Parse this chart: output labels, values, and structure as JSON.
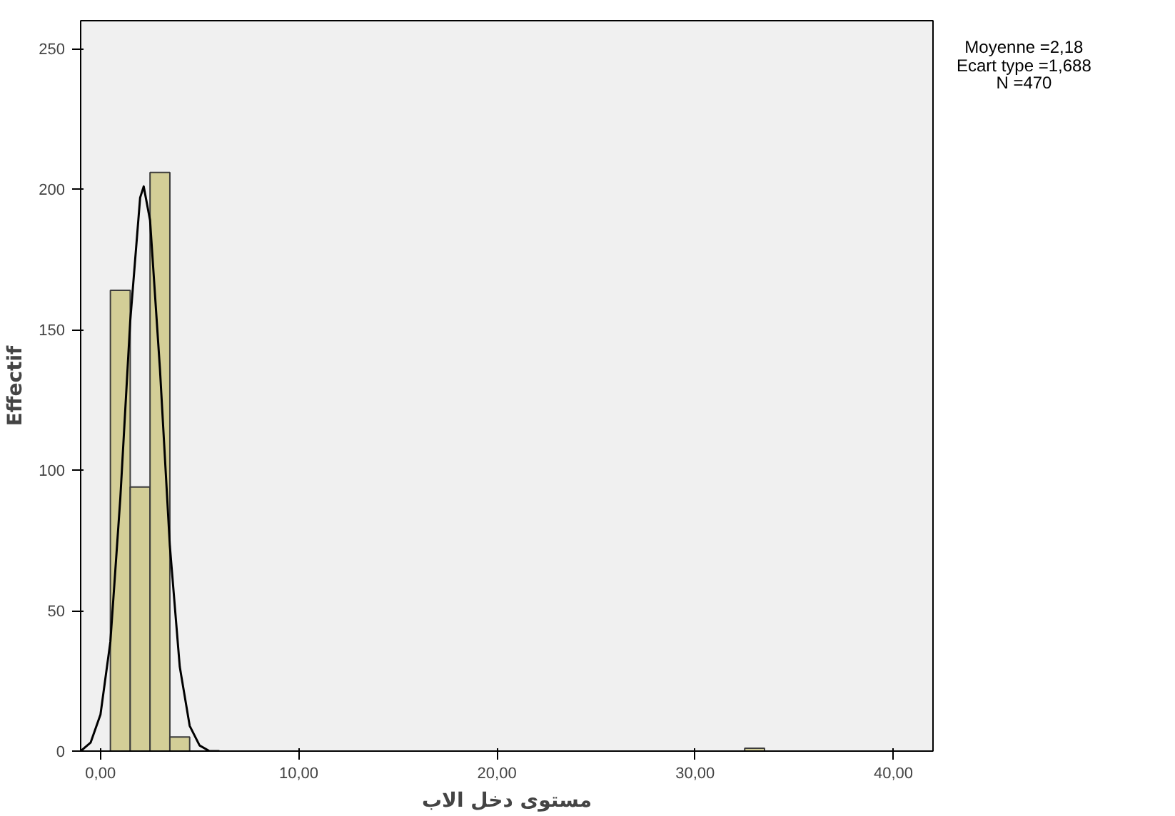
{
  "chart_data": {
    "type": "histogram",
    "xlabel": "مستوى دخل الاب",
    "ylabel": "Effectif",
    "bins": [
      0.5,
      1.5,
      2.5,
      3.5,
      4.5,
      5.5,
      6.5,
      7.5,
      8.5,
      9.5,
      10.5,
      11.5,
      12.5,
      13.5,
      14.5,
      15.5,
      16.5,
      17.5,
      18.5,
      19.5,
      20.5,
      21.5,
      22.5,
      23.5,
      24.5,
      25.5,
      26.5,
      27.5,
      28.5,
      29.5,
      30.5,
      31.5,
      32.5,
      33.5
    ],
    "values": [
      164,
      94,
      206,
      5,
      0,
      0,
      0,
      0,
      0,
      0,
      0,
      0,
      0,
      0,
      0,
      0,
      0,
      0,
      0,
      0,
      0,
      0,
      0,
      0,
      0,
      0,
      0,
      0,
      0,
      0,
      0,
      0,
      1
    ],
    "color": "#d3ce97",
    "series": [
      {
        "type": "line",
        "color": "#000000",
        "x": [
          -1,
          -0.5,
          0,
          0.5,
          1,
          1.5,
          2,
          2.18,
          2.5,
          3,
          3.5,
          4,
          4.5,
          5,
          5.5,
          6
        ],
        "values": [
          0,
          3,
          13,
          39,
          90,
          153,
          197,
          201,
          189,
          136,
          73,
          30,
          9,
          2,
          0,
          0
        ]
      }
    ],
    "xlim": [
      -1,
      42
    ],
    "ylim": [
      0,
      260
    ],
    "xticks": [
      {
        "value": 0,
        "label": "0,00"
      },
      {
        "value": 10,
        "label": "10,00"
      },
      {
        "value": 20,
        "label": "20,00"
      },
      {
        "value": 30,
        "label": "30,00"
      },
      {
        "value": 40,
        "label": "40,00"
      }
    ],
    "yticks": [
      0,
      50,
      100,
      150,
      200,
      250
    ],
    "annotations": [
      "Moyenne =2,18",
      "Ecart type =1,688",
      "N =470"
    ],
    "grid": false
  }
}
